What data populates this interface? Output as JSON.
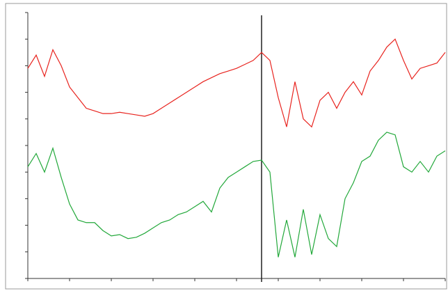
{
  "chart_data": {
    "type": "line",
    "x": [
      0,
      2,
      4,
      6,
      8,
      10,
      12,
      14,
      16,
      18,
      20,
      22,
      24,
      26,
      28,
      30,
      32,
      34,
      36,
      38,
      40,
      42,
      44,
      46,
      48,
      50,
      52,
      54,
      56,
      58,
      60,
      62,
      64,
      66,
      68,
      70,
      72,
      74,
      76,
      78,
      80,
      82,
      84,
      86,
      88,
      90,
      92,
      94,
      96,
      98,
      100
    ],
    "series": [
      {
        "color": "#e8231e",
        "values": [
          79,
          84,
          76,
          86,
          80,
          72,
          68,
          64,
          63,
          62,
          62,
          62.5,
          62,
          61.5,
          61,
          62,
          64,
          66,
          68,
          70,
          72,
          74,
          75.5,
          77,
          78,
          79,
          80.5,
          82,
          85,
          82,
          68,
          57,
          74,
          60,
          57,
          67,
          70,
          64,
          70,
          74,
          69,
          78,
          82,
          87,
          90,
          82,
          75,
          79,
          80,
          81,
          85
        ]
      },
      {
        "color": "#22a83a",
        "values": [
          42,
          47,
          40,
          49,
          38,
          28,
          22,
          21,
          21,
          18,
          16,
          16.5,
          15,
          15.5,
          17,
          19,
          21,
          22,
          24,
          25,
          27,
          29,
          25,
          34,
          38,
          40,
          42,
          44,
          44.5,
          40,
          8,
          22,
          8,
          26,
          9,
          24,
          15,
          12,
          30,
          36,
          44,
          46,
          52,
          55,
          54,
          42,
          40,
          44,
          40,
          46,
          48
        ]
      }
    ],
    "xlim": [
      0,
      100
    ],
    "ylim": [
      0,
      100
    ],
    "xticks": [
      0,
      10,
      20,
      30,
      40,
      50,
      60,
      70,
      80,
      90,
      100
    ],
    "yticks": [
      0,
      10,
      20,
      30,
      40,
      50,
      60,
      70,
      80,
      90,
      100
    ],
    "vline": 56
  }
}
